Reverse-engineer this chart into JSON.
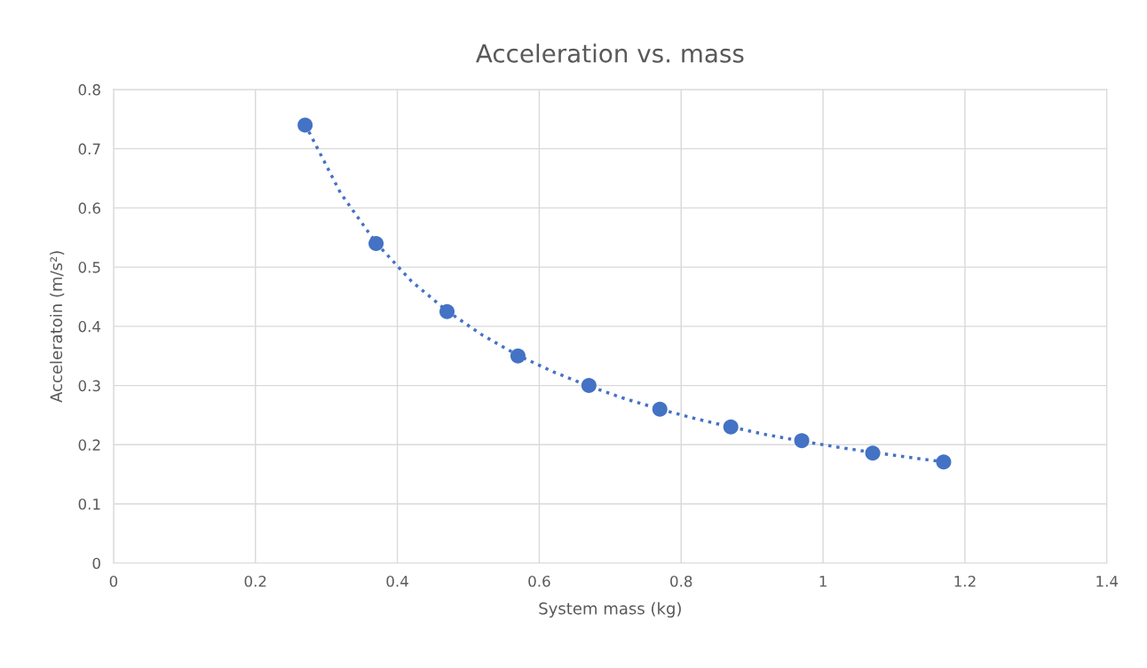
{
  "chart_data": {
    "type": "scatter",
    "title": "Acceleration vs. mass",
    "xlabel": "System mass (kg)",
    "ylabel": "Acceleratoin (m/s²)",
    "x": [
      0.27,
      0.37,
      0.47,
      0.57,
      0.67,
      0.77,
      0.87,
      0.97,
      1.07,
      1.17
    ],
    "series": [
      {
        "color": "#4472c4",
        "marker": "circle",
        "values": [
          0.74,
          0.54,
          0.425,
          0.35,
          0.3,
          0.26,
          0.23,
          0.207,
          0.186,
          0.171
        ]
      },
      {
        "type": "line",
        "color": "#4472c4",
        "marker": "none",
        "line_style": "dotted",
        "x": [
          0.27,
          0.32,
          0.37,
          0.42,
          0.47,
          0.52,
          0.57,
          0.62,
          0.67,
          0.72,
          0.77,
          0.82,
          0.87,
          0.92,
          0.97,
          1.02,
          1.07,
          1.12,
          1.17
        ],
        "values": [
          0.741,
          0.625,
          0.541,
          0.476,
          0.426,
          0.385,
          0.351,
          0.323,
          0.299,
          0.278,
          0.26,
          0.244,
          0.23,
          0.217,
          0.206,
          0.196,
          0.187,
          0.179,
          0.171
        ]
      }
    ],
    "xlim": [
      0,
      1.4
    ],
    "xticks": [
      0,
      0.2,
      0.4,
      0.6,
      0.8,
      1,
      1.2,
      1.4
    ],
    "ylim": [
      0,
      0.8
    ],
    "yticks": [
      0,
      0.1,
      0.2,
      0.3,
      0.4,
      0.5,
      0.6,
      0.7,
      0.8
    ],
    "grid": true,
    "legend": false
  }
}
